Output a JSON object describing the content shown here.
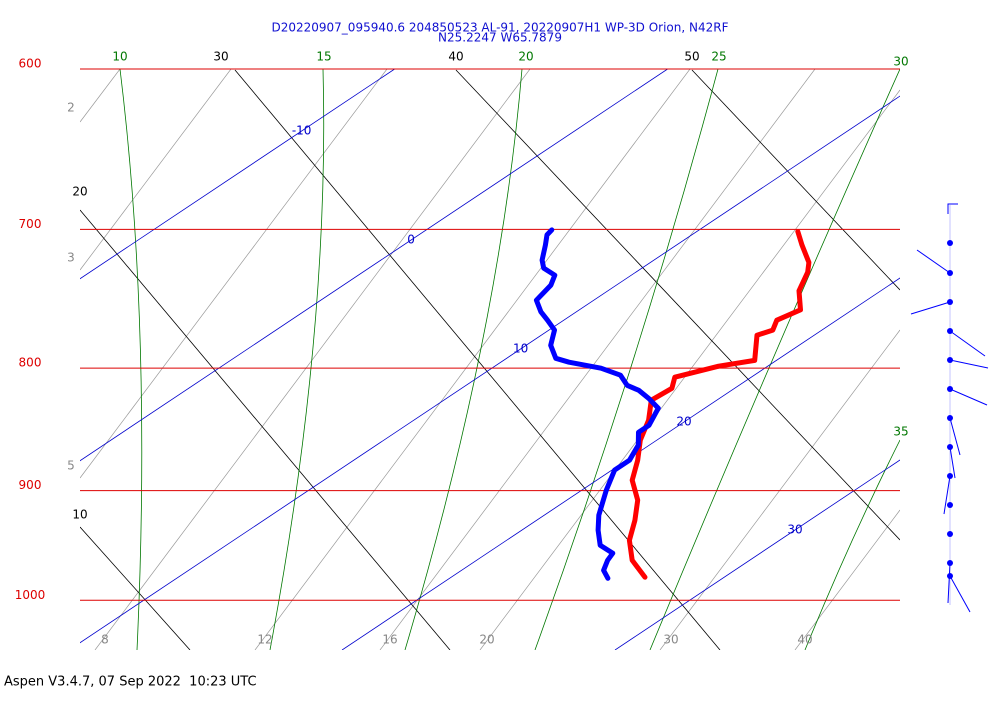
{
  "header": {
    "line1": "D20220907_095940.6 204850523 AL-91, 20220907H1 WP-3D Orion, N42RF",
    "line2": "N25.2247 W65.7879"
  },
  "chart_data": {
    "type": "skewt",
    "ylim": [
      1049,
      600
    ],
    "yticks": [
      600,
      700,
      800,
      900,
      1000
    ],
    "xlim": [
      10.4,
      40.44
    ],
    "isotherms": [
      -10,
      0,
      10,
      20,
      30
    ],
    "dry_adiabats": [
      10,
      20,
      30,
      40,
      50
    ],
    "moist_adiabats": [
      10,
      15,
      20,
      25,
      30,
      35
    ],
    "mixing_ratios": [
      2,
      3,
      5,
      8,
      12,
      16,
      20,
      30,
      40
    ],
    "series": [
      {
        "color": "#ff0000",
        "pressure": [
          978.1,
          962.3,
          944.0,
          926.0,
          908.3,
          891.0,
          874.0,
          857.4,
          841.0,
          825.0,
          815.6,
          807.0,
          798.5,
          794.0,
          775.0,
          771.2,
          763.9,
          756.3,
          742.6,
          729.5,
          722.6,
          710.7,
          701.5
        ],
        "values": [
          27.1,
          25.7,
          24.5,
          23.6,
          22.6,
          21.3,
          20.4,
          19.4,
          18.6,
          17.6,
          17.7,
          17.2,
          18.2,
          19.2,
          17.9,
          18.2,
          17.8,
          18.1,
          17.0,
          16.3,
          15.8,
          14.6,
          13.7
        ]
      },
      {
        "color": "#0000ff",
        "pressure": [
          979.1,
          971.6,
          962.3,
          955.8,
          948.5,
          934.9,
          921.5,
          899.6,
          882.4,
          874.0,
          861.5,
          850.9,
          845.2,
          831.4,
          823.5,
          817.2,
          813.3,
          805.4,
          800.0,
          795.4,
          792.4,
          782.6,
          771.2,
          763.9,
          757.8,
          749.4,
          738.6,
          731.6,
          726.6,
          721.0,
          710.7,
          703.8,
          700.4
        ],
        "values": [
          25.8,
          25.2,
          24.8,
          24.6,
          23.7,
          22.8,
          22.0,
          20.9,
          20.1,
          20.1,
          19.6,
          18.9,
          18.9,
          18.3,
          17.4,
          16.6,
          15.9,
          15.1,
          14.0,
          12.5,
          11.8,
          10.9,
          10.2,
          9.4,
          8.7,
          7.9,
          7.6,
          7.2,
          6.4,
          5.9,
          5.2,
          4.7,
          4.6
        ]
      }
    ]
  },
  "footer": "Aspen V3.4.7, 07 Sep 2022  10:23 UTC"
}
